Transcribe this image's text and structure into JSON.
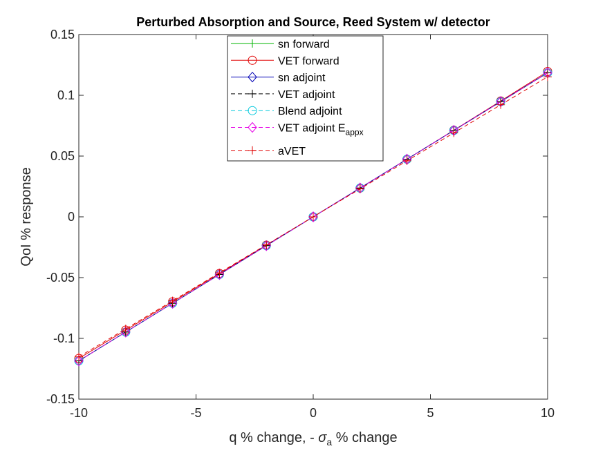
{
  "chart_data": {
    "type": "line",
    "title": "Perturbed Absorption and Source, Reed System w/ detector",
    "xlabel": "q % change, - σa % change",
    "xlabel_parts": {
      "pre": "q % change, - ",
      "sym": "σ",
      "sub": "a",
      "post": " % change"
    },
    "ylabel": "QoI % response",
    "xlim": [
      -10,
      10
    ],
    "ylim": [
      -0.15,
      0.15
    ],
    "xticks": [
      -10,
      -5,
      0,
      5,
      10
    ],
    "xtick_labels": [
      "-10",
      "-5",
      "0",
      "5",
      "10"
    ],
    "yticks": [
      -0.15,
      -0.1,
      -0.05,
      0,
      0.05,
      0.1,
      0.15
    ],
    "ytick_labels": [
      "-0.15",
      "-0.1",
      "-0.05",
      "0",
      "0.05",
      "0.1",
      "0.15"
    ],
    "grid": false,
    "legend_position": "top-center",
    "x": [
      -10,
      -8,
      -6,
      -4,
      -2,
      0,
      2,
      4,
      6,
      8,
      10
    ],
    "series": [
      {
        "name": "sn forward",
        "color": "#00b400",
        "dash": "solid",
        "marker": "plus",
        "values": [
          -0.1185,
          -0.0948,
          -0.0711,
          -0.0474,
          -0.0237,
          0,
          0.0237,
          0.0474,
          0.0711,
          0.0948,
          0.1185
        ]
      },
      {
        "name": "VET forward",
        "color": "#e00000",
        "dash": "solid",
        "marker": "circle",
        "values": [
          -0.1165,
          -0.0932,
          -0.0699,
          -0.0466,
          -0.0233,
          0,
          0.0236,
          0.0474,
          0.0713,
          0.0953,
          0.1196
        ]
      },
      {
        "name": "sn adjoint",
        "color": "#0000b4",
        "dash": "solid",
        "marker": "diamond",
        "values": [
          -0.1185,
          -0.0948,
          -0.0711,
          -0.0474,
          -0.0237,
          0,
          0.0237,
          0.0474,
          0.0711,
          0.0948,
          0.1185
        ]
      },
      {
        "name": "VET adjoint",
        "color": "#000000",
        "dash": "dashed",
        "marker": "plus",
        "values": [
          -0.1185,
          -0.0948,
          -0.0711,
          -0.0474,
          -0.0237,
          0,
          0.0237,
          0.0474,
          0.0711,
          0.0948,
          0.1185
        ]
      },
      {
        "name": "Blend adjoint",
        "color": "#00c8dc",
        "dash": "dashed",
        "marker": "circle",
        "values": [
          -0.1185,
          -0.0948,
          -0.0711,
          -0.0474,
          -0.0237,
          0,
          0.0237,
          0.0474,
          0.0711,
          0.0948,
          0.1185
        ]
      },
      {
        "name": "VET adjoint Eappx",
        "name_main": "VET adjoint E",
        "name_sub": "appx",
        "color": "#e600e6",
        "dash": "dashed",
        "marker": "diamond",
        "values": [
          -0.1185,
          -0.0948,
          -0.0711,
          -0.0474,
          -0.0237,
          0,
          0.0237,
          0.0474,
          0.0711,
          0.0948,
          0.1185
        ]
      },
      {
        "name": "aVET",
        "color": "#e00000",
        "dash": "dashed",
        "marker": "plus",
        "values": [
          -0.1152,
          -0.0922,
          -0.0691,
          -0.0461,
          -0.023,
          0,
          0.023,
          0.0461,
          0.0691,
          0.0922,
          0.1152
        ]
      }
    ]
  }
}
